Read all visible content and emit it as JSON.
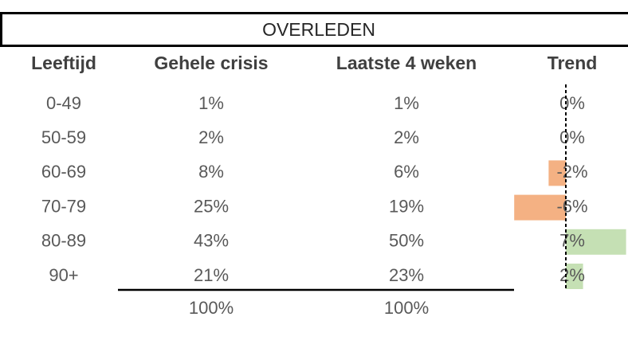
{
  "header": {
    "title": "OVERLEDEN"
  },
  "table": {
    "columns": [
      "Leeftijd",
      "Gehele crisis",
      "Laatste 4 weken",
      "Trend"
    ],
    "rows": [
      {
        "age": "0-49",
        "total": "1%",
        "recent": "1%",
        "trend": {
          "value": 0,
          "label": "0%"
        }
      },
      {
        "age": "50-59",
        "total": "2%",
        "recent": "2%",
        "trend": {
          "value": 0,
          "label": "0%"
        }
      },
      {
        "age": "60-69",
        "total": "8%",
        "recent": "6%",
        "trend": {
          "value": -2,
          "label": "-2%"
        }
      },
      {
        "age": "70-79",
        "total": "25%",
        "recent": "19%",
        "trend": {
          "value": -6,
          "label": "-6%"
        }
      },
      {
        "age": "80-89",
        "total": "43%",
        "recent": "50%",
        "trend": {
          "value": 7,
          "label": "7%"
        }
      },
      {
        "age": "90+",
        "total": "21%",
        "recent": "23%",
        "trend": {
          "value": 2,
          "label": "2%"
        }
      }
    ],
    "footer": {
      "total": "100%",
      "recent": "100%"
    }
  }
}
